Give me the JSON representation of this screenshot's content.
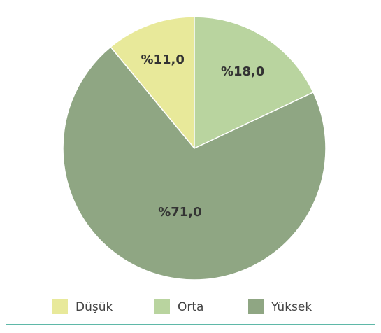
{
  "chart_data": {
    "type": "pie",
    "categories": [
      "Düşük",
      "Orta",
      "Yüksek"
    ],
    "values": [
      11.0,
      18.0,
      71.0
    ],
    "value_labels": [
      "%11,0",
      "%18,0",
      "%71,0"
    ],
    "colors": [
      "#e8e99a",
      "#b9d49f",
      "#8fa683"
    ],
    "legend": "bottom"
  }
}
